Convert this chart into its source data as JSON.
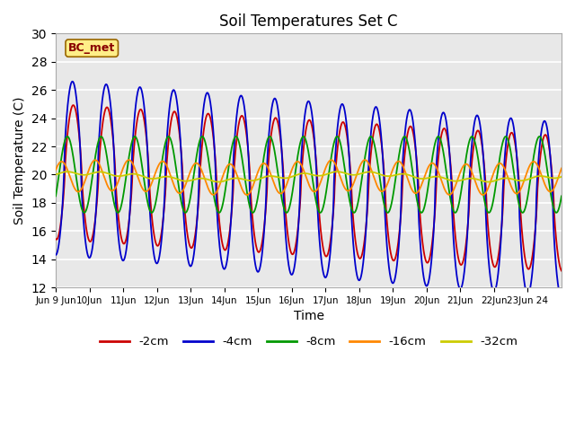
{
  "title": "Soil Temperatures Set C",
  "xlabel": "Time",
  "ylabel": "Soil Temperature (C)",
  "ylim": [
    12,
    30
  ],
  "legend_entries": [
    "-2cm",
    "-4cm",
    "-8cm",
    "-16cm",
    "-32cm"
  ],
  "line_colors": [
    "#cc0000",
    "#0000cc",
    "#009900",
    "#ff8800",
    "#cccc00"
  ],
  "bg_color": "#e8e8e8",
  "fig_bg": "#ffffff",
  "annotation_text": "BC_met",
  "annotation_bg": "#ffee88",
  "annotation_edge": "#996600",
  "grid_color": "#ffffff"
}
